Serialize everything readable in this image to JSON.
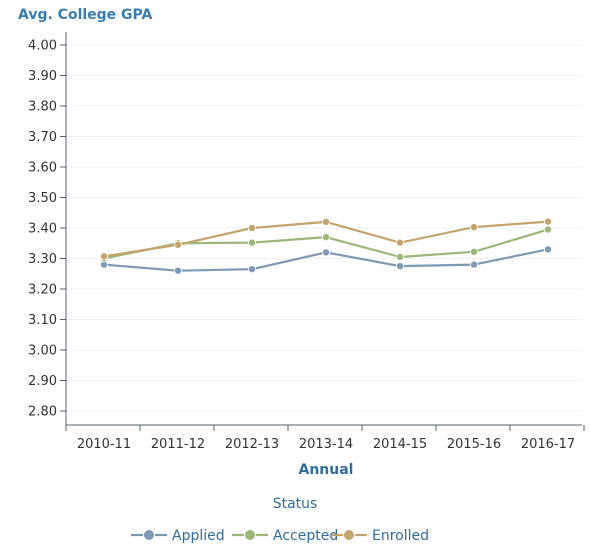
{
  "chart_data": {
    "type": "line",
    "title": "Avg. College GPA",
    "xlabel": "Annual",
    "ylabel": "",
    "ylim": [
      2.75,
      4.05
    ],
    "yticks": [
      "4.00",
      "3.90",
      "3.80",
      "3.70",
      "3.60",
      "3.50",
      "3.40",
      "3.30",
      "3.20",
      "3.10",
      "3.00",
      "2.90",
      "2.80"
    ],
    "ytick_values": [
      4.0,
      3.9,
      3.8,
      3.7,
      3.6,
      3.5,
      3.4,
      3.3,
      3.2,
      3.1,
      3.0,
      2.9,
      2.8
    ],
    "categories": [
      "2010-11",
      "2011-12",
      "2012-13",
      "2013-14",
      "2014-15",
      "2015-16",
      "2016-17"
    ],
    "legend_title": "Status",
    "legend_position": "bottom",
    "grid": true,
    "series": [
      {
        "name": "Applied",
        "color": "#7f99b3",
        "values": [
          3.28,
          3.26,
          3.265,
          3.32,
          3.275,
          3.28,
          3.33
        ]
      },
      {
        "name": "Accepted",
        "color": "#9ab87a",
        "values": [
          3.3,
          3.35,
          3.352,
          3.37,
          3.305,
          3.322,
          3.395
        ]
      },
      {
        "name": "Enrolled",
        "color": "#c4a46c",
        "values": [
          3.307,
          3.345,
          3.4,
          3.42,
          3.352,
          3.403,
          3.421
        ]
      }
    ]
  },
  "colors": {
    "title": "#3a7db3",
    "axis_label": "#2f6e9e",
    "tick_text": "#333333",
    "grid": "#eef0f3",
    "axis": "#5a6270"
  }
}
